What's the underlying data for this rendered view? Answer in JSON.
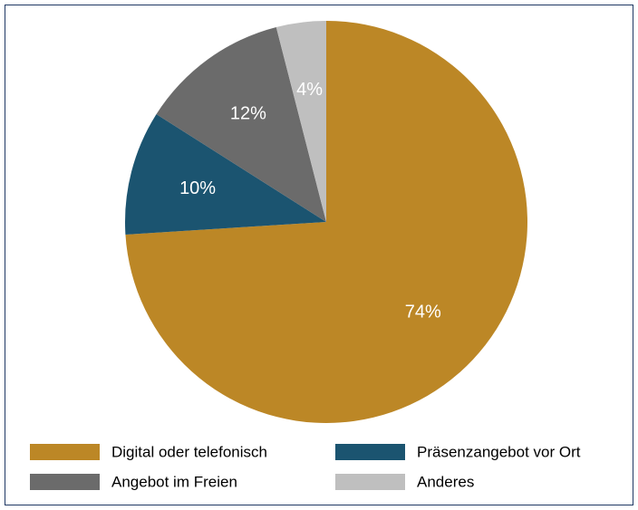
{
  "chart_data": {
    "type": "pie",
    "categories": [
      "Digital oder telefonisch",
      "Präsenzangebot vor Ort",
      "Angebot im Freien",
      "Anderes"
    ],
    "values": [
      74,
      10,
      12,
      4
    ],
    "value_labels": [
      "74%",
      "10%",
      "12%",
      "4%"
    ],
    "colors": [
      "#bc8726",
      "#1b5470",
      "#6b6b6b",
      "#bfbfbf"
    ],
    "legend": "bottom"
  }
}
